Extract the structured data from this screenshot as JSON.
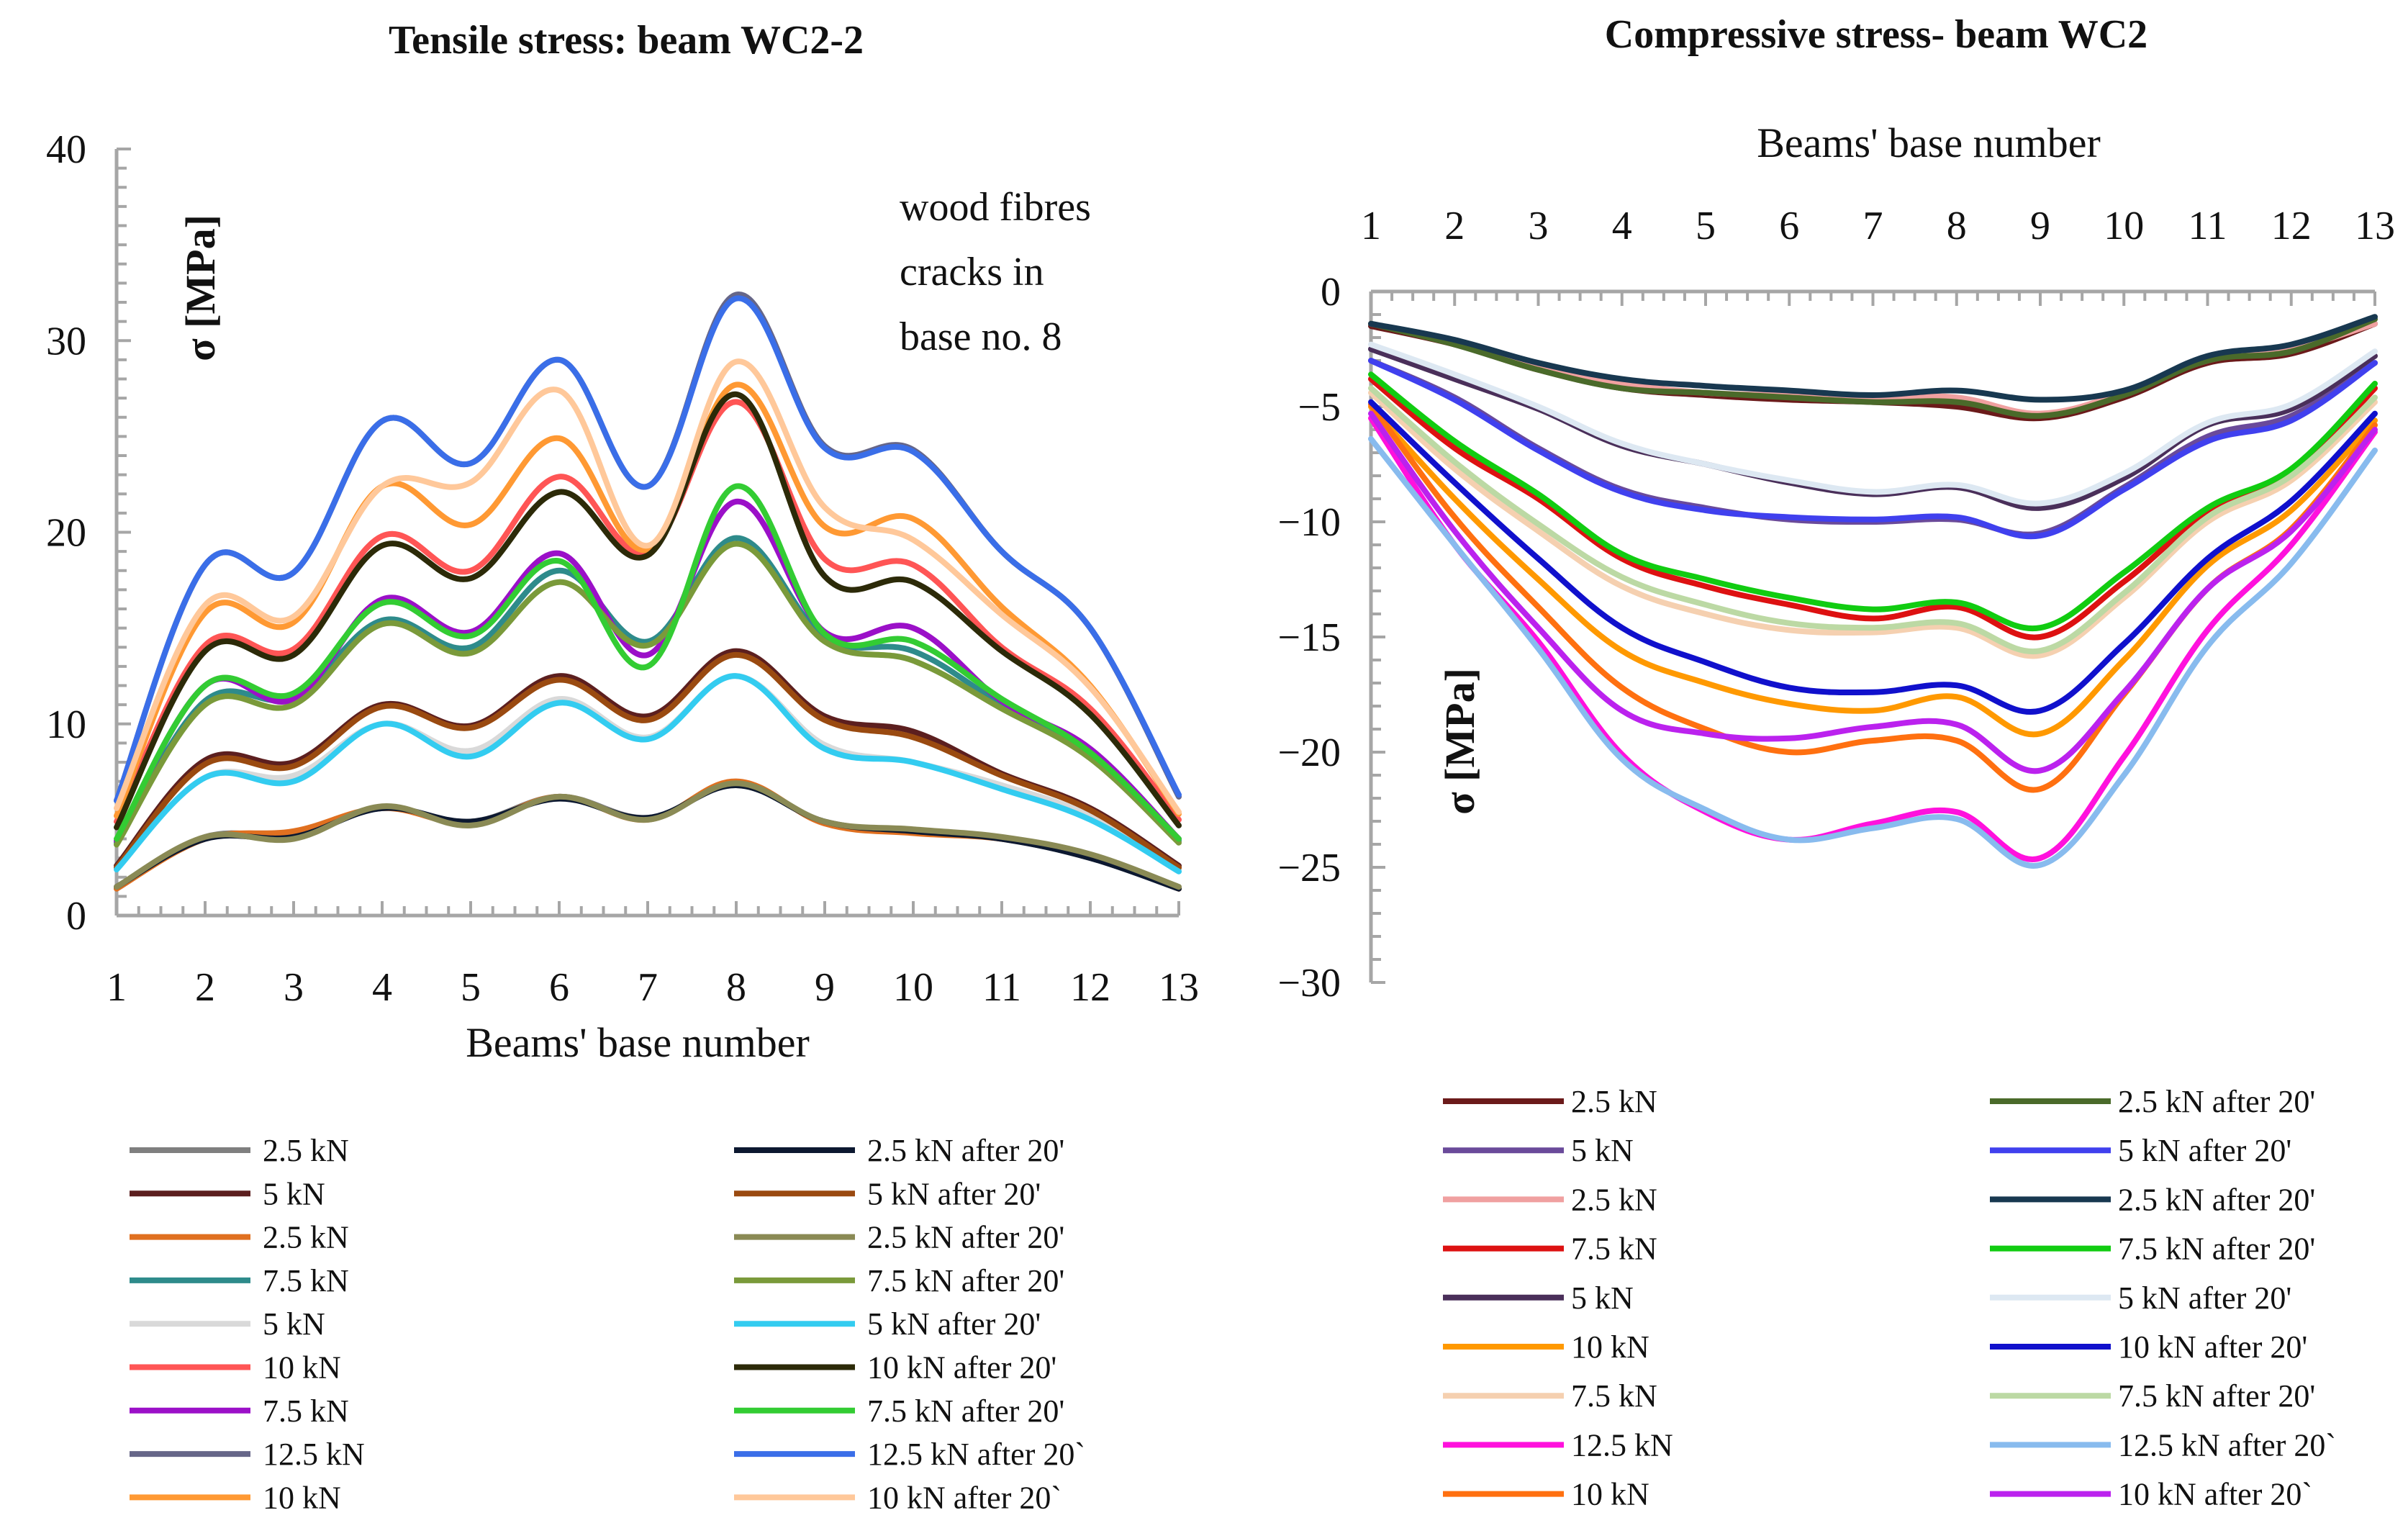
{
  "chart_data": [
    {
      "type": "line",
      "title": "Tensile stress: beam WC2-2",
      "xlabel": "Beams' base number",
      "ylabel": "σ [MPa]",
      "annotation": [
        "wood fibres",
        "cracks in",
        "base no. 8"
      ],
      "xlim": [
        1,
        13
      ],
      "ylim": [
        0,
        40
      ],
      "x": [
        1,
        2,
        3,
        4,
        5,
        6,
        7,
        8,
        9,
        10,
        11,
        12,
        13
      ],
      "y_ticks": [
        0,
        10,
        20,
        30,
        40
      ],
      "series": [
        {
          "name": "2.5 kN",
          "color": "#7f7f7f",
          "values": [
            1.4,
            4.1,
            4.2,
            5.6,
            4.9,
            6.2,
            5.1,
            6.8,
            4.9,
            4.4,
            4.0,
            3.0,
            1.4
          ]
        },
        {
          "name": "5 kN",
          "color": "#5c1f1f",
          "values": [
            2.6,
            8.1,
            8.0,
            11.0,
            9.9,
            12.5,
            10.4,
            13.8,
            10.4,
            9.6,
            7.4,
            5.6,
            2.6
          ]
        },
        {
          "name": "2.5 kN",
          "color": "#e07020",
          "values": [
            1.4,
            4.0,
            4.4,
            5.6,
            4.8,
            6.2,
            5.0,
            7.0,
            4.8,
            4.3,
            4.0,
            3.1,
            1.4
          ]
        },
        {
          "name": "7.5 kN",
          "color": "#2e8b8b",
          "values": [
            3.8,
            11.2,
            11.4,
            15.4,
            14.0,
            18.0,
            14.3,
            19.7,
            14.5,
            13.8,
            11.0,
            8.3,
            3.9
          ]
        },
        {
          "name": "5 kN",
          "color": "#d9d9d9",
          "values": [
            2.5,
            7.2,
            7.3,
            10.0,
            8.6,
            11.3,
            9.3,
            12.5,
            8.9,
            8.0,
            6.8,
            5.2,
            2.4
          ]
        },
        {
          "name": "10 kN",
          "color": "#ff5555",
          "values": [
            4.9,
            14.1,
            13.9,
            19.8,
            18.0,
            22.9,
            19.0,
            26.8,
            18.6,
            18.3,
            14.0,
            10.8,
            5.0
          ]
        },
        {
          "name": "7.5 kN",
          "color": "#9b10c8",
          "values": [
            3.9,
            12.0,
            11.3,
            16.5,
            14.8,
            18.9,
            13.6,
            21.6,
            14.8,
            15.0,
            11.2,
            8.7,
            4.0
          ]
        },
        {
          "name": "12.5 kN",
          "color": "#666688",
          "values": [
            6.0,
            18.3,
            17.9,
            25.8,
            23.6,
            29.0,
            22.4,
            32.4,
            24.5,
            24.3,
            19.0,
            15.0,
            6.2
          ]
        },
        {
          "name": "10 kN",
          "color": "#ff9933",
          "values": [
            5.2,
            15.8,
            15.3,
            22.4,
            20.4,
            24.9,
            19.1,
            27.7,
            20.3,
            20.7,
            16.1,
            12.0,
            5.3
          ]
        },
        {
          "name": "2.5 kN after 20'",
          "color": "#0c1830",
          "values": [
            1.5,
            4.0,
            4.1,
            5.6,
            4.9,
            6.1,
            5.1,
            6.8,
            4.9,
            4.4,
            4.0,
            3.0,
            1.4
          ]
        },
        {
          "name": "5 kN after 20'",
          "color": "#9a4a10",
          "values": [
            2.5,
            7.9,
            7.8,
            10.9,
            9.8,
            12.3,
            10.2,
            13.6,
            10.2,
            9.3,
            7.3,
            5.5,
            2.5
          ]
        },
        {
          "name": "2.5 kN after 20'",
          "color": "#8a8a55",
          "values": [
            1.5,
            4.1,
            4.0,
            5.7,
            4.7,
            6.2,
            5.0,
            6.9,
            4.9,
            4.5,
            4.1,
            3.2,
            1.5
          ]
        },
        {
          "name": "7.5 kN after 20'",
          "color": "#7a9a3a",
          "values": [
            3.7,
            11.0,
            11.0,
            15.2,
            13.7,
            17.4,
            14.1,
            19.4,
            14.3,
            13.3,
            10.8,
            8.2,
            3.8
          ]
        },
        {
          "name": "5 kN after 20'",
          "color": "#33ccf0",
          "values": [
            2.4,
            7.2,
            7.0,
            10.0,
            8.3,
            11.1,
            9.2,
            12.5,
            8.7,
            8.0,
            6.6,
            5.0,
            2.3
          ]
        },
        {
          "name": "10 kN after 20'",
          "color": "#2c2a08",
          "values": [
            4.6,
            13.8,
            13.6,
            19.3,
            17.6,
            22.1,
            18.8,
            27.2,
            17.7,
            17.4,
            13.8,
            10.5,
            4.7
          ]
        },
        {
          "name": "7.5 kN after 20'",
          "color": "#33cc33",
          "values": [
            4.0,
            12.0,
            11.6,
            16.3,
            14.6,
            18.5,
            13.0,
            22.4,
            14.7,
            14.3,
            11.3,
            8.5,
            4.0
          ]
        },
        {
          "name": "12.5 kN after 20`",
          "color": "#3a6ee8",
          "values": [
            6.0,
            18.3,
            17.9,
            25.8,
            23.6,
            29.0,
            22.4,
            32.2,
            24.4,
            24.2,
            19.0,
            15.0,
            6.3
          ]
        },
        {
          "name": "10 kN after 20`",
          "color": "#ffc89a",
          "values": [
            5.6,
            16.2,
            15.6,
            22.4,
            22.6,
            27.4,
            19.3,
            28.9,
            21.3,
            19.6,
            15.7,
            11.9,
            5.4
          ]
        }
      ]
    },
    {
      "type": "line",
      "title": "Compressive stress- beam WC2",
      "xlabel": "Beams' base number",
      "ylabel": "σ [MPa]",
      "xlim": [
        1,
        13
      ],
      "ylim": [
        -30,
        0
      ],
      "x": [
        1,
        2,
        3,
        4,
        5,
        6,
        7,
        8,
        9,
        10,
        11,
        12,
        13
      ],
      "y_ticks": [
        0,
        -5,
        -10,
        -15,
        -20,
        -25,
        -30
      ],
      "series": [
        {
          "name": "2.5 kN",
          "color": "#6b1a1a",
          "values": [
            -1.5,
            -2.3,
            -3.4,
            -4.2,
            -4.5,
            -4.7,
            -4.8,
            -5.0,
            -5.5,
            -4.6,
            -3.1,
            -2.7,
            -1.4
          ]
        },
        {
          "name": "5 kN",
          "color": "#6a4a9a",
          "values": [
            -3.0,
            -4.6,
            -6.8,
            -8.6,
            -9.4,
            -9.9,
            -10.0,
            -9.9,
            -10.5,
            -8.5,
            -6.3,
            -5.4,
            -3.1
          ]
        },
        {
          "name": "2.5 kN",
          "color": "#f0a0a0",
          "values": [
            -1.4,
            -2.2,
            -3.3,
            -4.0,
            -4.4,
            -4.5,
            -4.6,
            -4.6,
            -5.3,
            -4.4,
            -3.0,
            -2.5,
            -1.4
          ]
        },
        {
          "name": "7.5 kN",
          "color": "#dd1111",
          "values": [
            -3.8,
            -6.8,
            -9.0,
            -11.6,
            -12.8,
            -13.6,
            -14.2,
            -13.7,
            -15.0,
            -12.6,
            -9.6,
            -7.9,
            -4.2
          ]
        },
        {
          "name": "5 kN",
          "color": "#4a2f5a",
          "values": [
            -2.5,
            -3.8,
            -5.1,
            -6.7,
            -7.5,
            -8.3,
            -8.8,
            -8.5,
            -9.4,
            -8.1,
            -5.8,
            -5.1,
            -2.8
          ]
        },
        {
          "name": "10 kN",
          "color": "#ff9900",
          "values": [
            -5.0,
            -9.0,
            -12.5,
            -15.6,
            -17.0,
            -17.9,
            -18.2,
            -17.6,
            -19.2,
            -16.0,
            -11.9,
            -9.5,
            -5.6
          ]
        },
        {
          "name": "7.5 kN",
          "color": "#f5d0b0",
          "values": [
            -4.4,
            -7.7,
            -10.4,
            -12.8,
            -14.0,
            -14.7,
            -14.8,
            -14.6,
            -15.8,
            -13.3,
            -10.0,
            -8.2,
            -4.8
          ]
        },
        {
          "name": "12.5 kN",
          "color": "#ff11dd",
          "values": [
            -5.5,
            -11.0,
            -15.2,
            -20.1,
            -22.6,
            -23.8,
            -23.1,
            -22.6,
            -24.6,
            -20.2,
            -14.7,
            -11.0,
            -6.1
          ]
        },
        {
          "name": "10 kN",
          "color": "#ff7010",
          "values": [
            -4.9,
            -9.8,
            -13.7,
            -17.2,
            -19.0,
            -20.0,
            -19.5,
            -19.5,
            -21.6,
            -17.5,
            -12.9,
            -10.3,
            -5.8
          ]
        },
        {
          "name": "2.5 kN after 20'",
          "color": "#4a6a2a",
          "values": [
            -1.4,
            -2.3,
            -3.4,
            -4.2,
            -4.4,
            -4.6,
            -4.8,
            -4.8,
            -5.4,
            -4.5,
            -3.0,
            -2.6,
            -1.2
          ]
        },
        {
          "name": "5 kN after 20'",
          "color": "#4040ee",
          "values": [
            -3.0,
            -4.7,
            -6.9,
            -8.7,
            -9.5,
            -9.8,
            -9.9,
            -9.8,
            -10.6,
            -8.6,
            -6.5,
            -5.6,
            -3.1
          ]
        },
        {
          "name": "2.5 kN after 20'",
          "color": "#183850",
          "values": [
            -1.4,
            -2.1,
            -3.1,
            -3.8,
            -4.1,
            -4.3,
            -4.5,
            -4.3,
            -4.7,
            -4.3,
            -2.8,
            -2.3,
            -1.1
          ]
        },
        {
          "name": "7.5 kN after 20'",
          "color": "#11cc11",
          "values": [
            -3.6,
            -6.5,
            -8.8,
            -11.4,
            -12.5,
            -13.3,
            -13.8,
            -13.5,
            -14.6,
            -12.2,
            -9.4,
            -7.7,
            -4.0
          ]
        },
        {
          "name": "5 kN after 20'",
          "color": "#dde8f2",
          "values": [
            -2.3,
            -3.6,
            -5.0,
            -6.6,
            -7.5,
            -8.2,
            -8.7,
            -8.4,
            -9.2,
            -7.9,
            -5.7,
            -4.9,
            -2.6
          ]
        },
        {
          "name": "10 kN after 20'",
          "color": "#1010cc",
          "values": [
            -4.8,
            -8.3,
            -11.6,
            -14.6,
            -16.1,
            -17.2,
            -17.4,
            -17.1,
            -18.2,
            -15.3,
            -11.6,
            -9.1,
            -5.3
          ]
        },
        {
          "name": "7.5 kN after 20'",
          "color": "#bcd9a4",
          "values": [
            -4.2,
            -7.4,
            -10.1,
            -12.4,
            -13.6,
            -14.4,
            -14.6,
            -14.4,
            -15.6,
            -13.1,
            -9.8,
            -8.0,
            -4.6
          ]
        },
        {
          "name": "12.5 kN after 20`",
          "color": "#88bbee",
          "values": [
            -6.4,
            -11.0,
            -15.5,
            -20.3,
            -22.5,
            -23.8,
            -23.3,
            -22.9,
            -24.9,
            -21.0,
            -15.4,
            -11.8,
            -6.9
          ]
        },
        {
          "name": "10 kN after 20`",
          "color": "#bb22ee",
          "values": [
            -5.3,
            -10.4,
            -14.6,
            -18.2,
            -19.2,
            -19.4,
            -18.9,
            -18.8,
            -20.8,
            -17.4,
            -12.9,
            -10.4,
            -6.0
          ]
        }
      ]
    }
  ]
}
